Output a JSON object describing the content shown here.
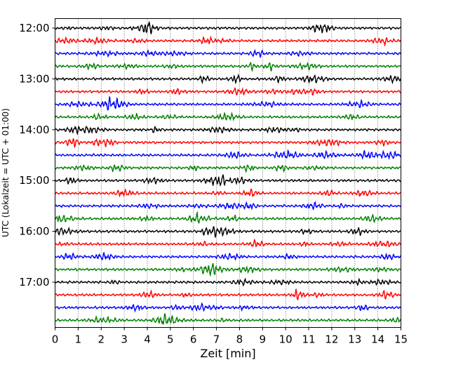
{
  "chart_data": {
    "type": "line",
    "title": "",
    "xlabel": "Zeit  [min]",
    "ylabel": "UTC (Lokalzeit = UTC + 01:00)",
    "xlim": [
      0,
      15
    ],
    "x_ticks": [
      0,
      1,
      2,
      3,
      4,
      5,
      6,
      7,
      8,
      9,
      10,
      11,
      12,
      13,
      14,
      15
    ],
    "y_tick_labels": [
      "12:00",
      "13:00",
      "14:00",
      "15:00",
      "16:00",
      "17:00"
    ],
    "grid": "vertical dotted",
    "trace_interval_min": 15,
    "trace_colors": [
      "#000000",
      "#ff0000",
      "#0000ff",
      "#008000"
    ],
    "traces": [
      {
        "start": "12:00",
        "color": "#000000"
      },
      {
        "start": "12:15",
        "color": "#ff0000"
      },
      {
        "start": "12:30",
        "color": "#0000ff"
      },
      {
        "start": "12:45",
        "color": "#008000"
      },
      {
        "start": "13:00",
        "color": "#000000"
      },
      {
        "start": "13:15",
        "color": "#ff0000"
      },
      {
        "start": "13:30",
        "color": "#0000ff"
      },
      {
        "start": "13:45",
        "color": "#008000"
      },
      {
        "start": "14:00",
        "color": "#000000"
      },
      {
        "start": "14:15",
        "color": "#ff0000"
      },
      {
        "start": "14:30",
        "color": "#0000ff"
      },
      {
        "start": "14:45",
        "color": "#008000"
      },
      {
        "start": "15:00",
        "color": "#000000"
      },
      {
        "start": "15:15",
        "color": "#ff0000"
      },
      {
        "start": "15:30",
        "color": "#0000ff"
      },
      {
        "start": "15:45",
        "color": "#008000"
      },
      {
        "start": "16:00",
        "color": "#000000"
      },
      {
        "start": "16:15",
        "color": "#ff0000"
      },
      {
        "start": "16:30",
        "color": "#0000ff"
      },
      {
        "start": "16:45",
        "color": "#008000"
      },
      {
        "start": "17:00",
        "color": "#000000"
      },
      {
        "start": "17:15",
        "color": "#ff0000"
      },
      {
        "start": "17:30",
        "color": "#0000ff"
      },
      {
        "start": "17:45",
        "color": "#008000"
      }
    ]
  }
}
